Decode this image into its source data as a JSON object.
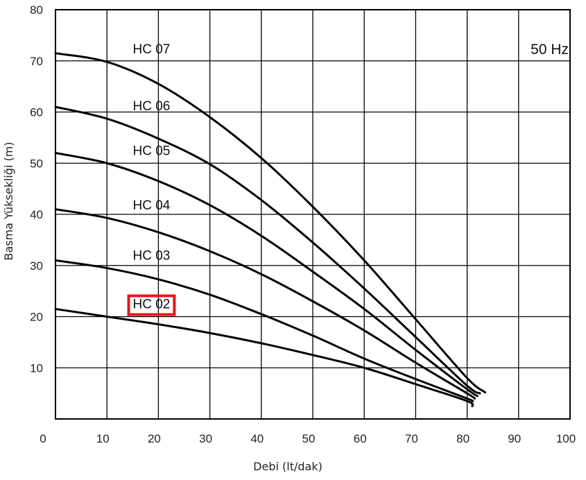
{
  "chart_data": {
    "type": "line",
    "xlabel": "Debi (lt/dak)",
    "ylabel": "Basma Yüksekliği (m)",
    "annotation": "50 Hz",
    "xlim": [
      0,
      100
    ],
    "ylim": [
      0,
      80
    ],
    "x_ticks": [
      "0",
      "10",
      "20",
      "30",
      "40",
      "50",
      "60",
      "70",
      "80",
      "90",
      "100"
    ],
    "y_ticks": [
      "10",
      "20",
      "30",
      "40",
      "50",
      "60",
      "70",
      "80"
    ],
    "grid": true,
    "highlighted_series": "HC 02",
    "highlight_color": "#e8141b",
    "series": [
      {
        "name": "HC 07",
        "x": [
          0,
          10,
          20,
          30,
          40,
          50,
          60,
          70,
          80,
          83.5
        ],
        "y": [
          71.5,
          69.8,
          65.5,
          59,
          51,
          41.5,
          31,
          19.5,
          8,
          5.2
        ]
      },
      {
        "name": "HC 06",
        "x": [
          0,
          10,
          20,
          30,
          40,
          50,
          60,
          70,
          80,
          82.5
        ],
        "y": [
          61,
          58.7,
          54.8,
          49.8,
          42.8,
          34.5,
          25.5,
          16,
          6.5,
          5
        ]
      },
      {
        "name": "HC 05",
        "x": [
          0,
          10,
          20,
          30,
          40,
          50,
          60,
          70,
          80,
          82
        ],
        "y": [
          52,
          50,
          46.5,
          41.8,
          35.8,
          28.8,
          21.5,
          13.5,
          5.8,
          4.5
        ]
      },
      {
        "name": "HC 04",
        "x": [
          0,
          10,
          20,
          30,
          40,
          50,
          60,
          70,
          80,
          81.5
        ],
        "y": [
          41,
          39.3,
          36.5,
          32.8,
          28.3,
          23,
          17.3,
          11,
          5,
          4
        ]
      },
      {
        "name": "HC 03",
        "x": [
          0,
          10,
          20,
          30,
          40,
          50,
          60,
          70,
          80,
          81
        ],
        "y": [
          31,
          29.5,
          27.3,
          24.3,
          20.5,
          16.3,
          11.8,
          7.8,
          4,
          3.5
        ]
      },
      {
        "name": "HC 02",
        "x": [
          0,
          10,
          20,
          30,
          40,
          50,
          60,
          70,
          80,
          81
        ],
        "y": [
          21.5,
          20,
          18.5,
          16.8,
          14.8,
          12.5,
          10,
          6.8,
          3.5,
          2.5
        ]
      }
    ]
  }
}
